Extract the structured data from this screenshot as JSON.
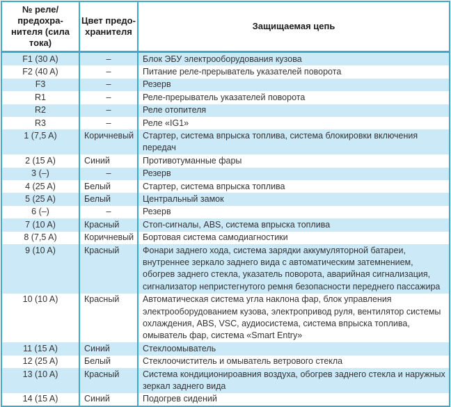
{
  "colors": {
    "border_teal": "#3fa9c9",
    "row_highlight": "#cbe9f7",
    "header_bg": "#ffffff",
    "text": "#333333",
    "header_text": "#1a1a1a"
  },
  "table": {
    "empty_marker": "–",
    "headers": {
      "number": "№ реле/предохра-\nнителя (сила тока)",
      "color": "Цвет предо-\nхранителя",
      "circuit": "Защищаемая цепь"
    },
    "rows": [
      {
        "num": "F1 (30 A)",
        "color": "–",
        "circuit": "Блок ЭБУ электрооборудования кузова"
      },
      {
        "num": "F2 (40 A)",
        "color": "–",
        "circuit": "Питание реле-прерыватель указателей поворота"
      },
      {
        "num": "F3",
        "color": "–",
        "circuit": "Резерв"
      },
      {
        "num": "R1",
        "color": "–",
        "circuit": "Реле-прерыватель указателей поворота"
      },
      {
        "num": "R2",
        "color": "–",
        "circuit": "Реле отопителя"
      },
      {
        "num": "R3",
        "color": "–",
        "circuit": "Реле «IG1»"
      },
      {
        "num": "1 (7,5 A)",
        "color": "Коричневый",
        "circuit": "Стартер, система впрыска топлива, система блокировки включения передач"
      },
      {
        "num": "2 (15 A)",
        "color": "Синий",
        "circuit": "Противотуманные фары"
      },
      {
        "num": "3 (–)",
        "color": "–",
        "circuit": "Резерв"
      },
      {
        "num": "4 (25 A)",
        "color": "Белый",
        "circuit": "Стартер, система впрыска топлива"
      },
      {
        "num": "5 (25 A)",
        "color": "Белый",
        "circuit": "Центральный замок"
      },
      {
        "num": "6 (–)",
        "color": "–",
        "circuit": "Резерв"
      },
      {
        "num": "7 (10 A)",
        "color": "Красный",
        "circuit": "Стоп-сигналы, ABS, система впрыска топлива"
      },
      {
        "num": "8 (7,5 A)",
        "color": "Коричневый",
        "circuit": "Бортовая система самодиагностики"
      },
      {
        "num": "9 (10 A)",
        "color": "Красный",
        "circuit": "Фонари заднего хода, система зарядки аккумуляторной батареи, внутреннее зеркало заднего вида с автоматическим затемнением, обогрев заднего стекла, указатель поворота, аварийная сигнализация, сигнализатор непристегнутого ремня безопасности переднего пассажира"
      },
      {
        "num": "10 (10 A)",
        "color": "Красный",
        "circuit": "Автоматическая система угла наклона фар, блок управления электрооборудованием кузова, электропривод руля, вентилятор системы охлаждения, ABS, VSC, аудиосистема, система впрыска топлива, омыватель фар, система «Smart Entry»"
      },
      {
        "num": "11 (15 A)",
        "color": "Синий",
        "circuit": "Стеклоомыватель"
      },
      {
        "num": "12 (25 A)",
        "color": "Белый",
        "circuit": "Стеклоочиститель и омыватель ветрового стекла"
      },
      {
        "num": "13 (10 A)",
        "color": "Красный",
        "circuit": "Система кондиционироавния воздуха, обогрев заднего стекла и наружных зеркал заднего вида"
      },
      {
        "num": "14 (15 A)",
        "color": "Синий",
        "circuit": "Подогрев сидений"
      }
    ]
  }
}
